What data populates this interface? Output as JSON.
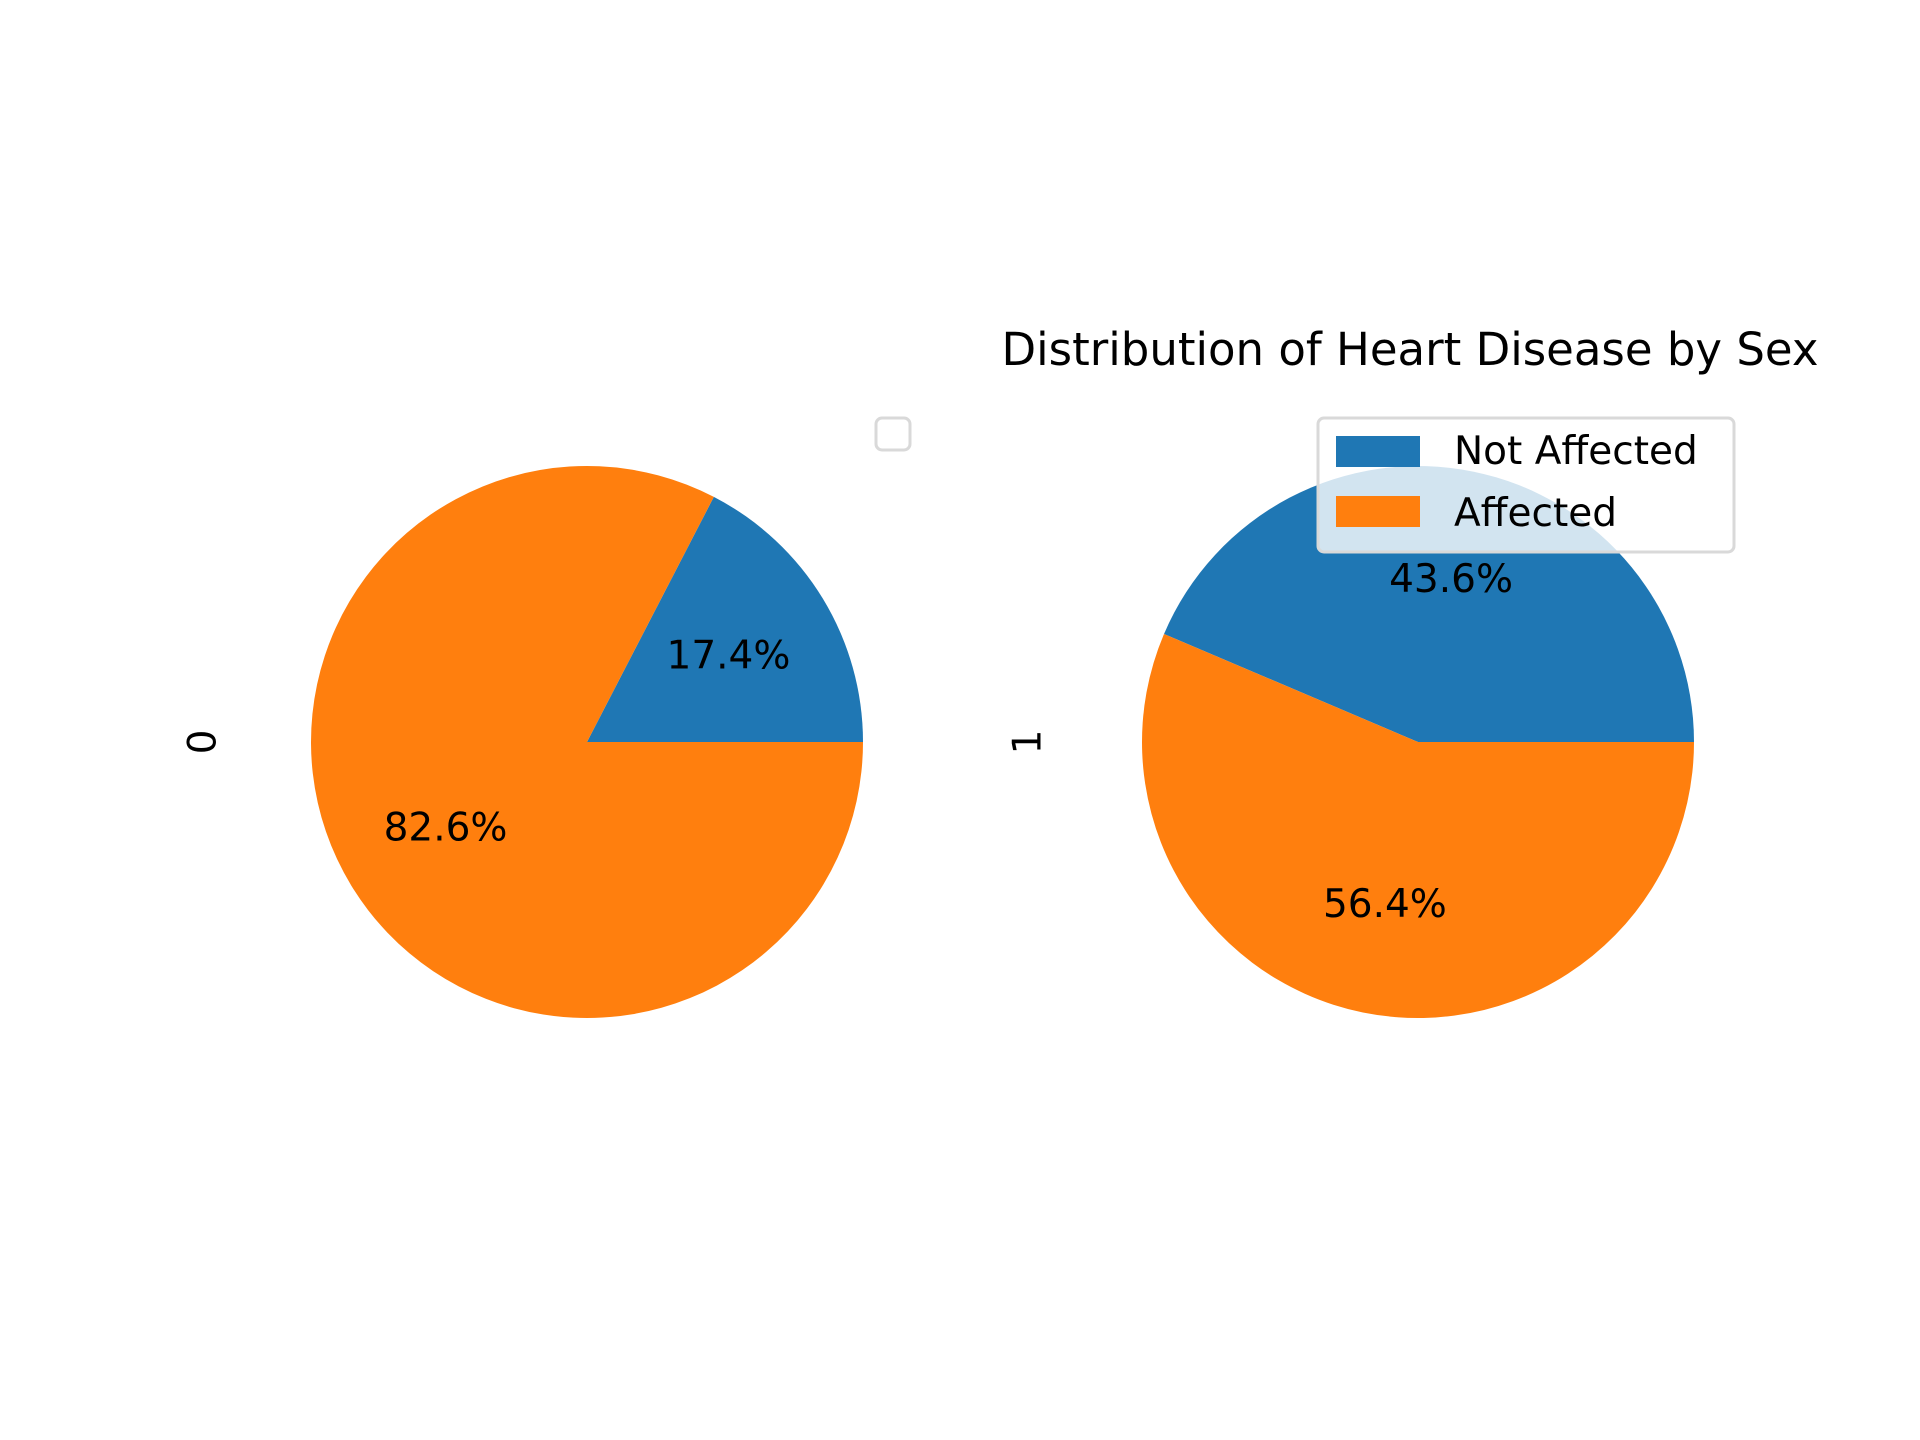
{
  "chart_data": {
    "type": "pie",
    "title": "Distribution of Heart Disease by Sex",
    "labels": [
      "Not Affected",
      "Affected"
    ],
    "colors": [
      "#1f77b4",
      "#ff7f0e"
    ],
    "pies": [
      {
        "ylabel": "0",
        "values": [
          17.4,
          82.6
        ],
        "value_labels": [
          "17.4%",
          "82.6%"
        ]
      },
      {
        "ylabel": "1",
        "values": [
          43.6,
          56.4
        ],
        "value_labels": [
          "43.6%",
          "56.4%"
        ]
      }
    ],
    "legends": [
      {
        "placement": "upper-right of first pie",
        "entries": []
      },
      {
        "placement": "upper-right of second pie",
        "entries": [
          "Not Affected",
          "Affected"
        ]
      }
    ]
  }
}
